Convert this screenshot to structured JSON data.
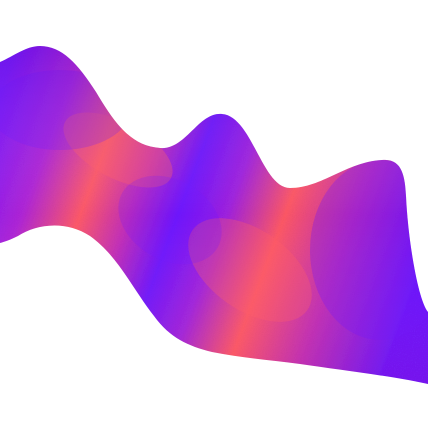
{
  "artwork": {
    "subject": "abstract-wave-ribbon",
    "background_color": "#ffffff",
    "colors": {
      "violet": "#6b12ff",
      "purple": "#9a1cf0",
      "magenta": "#e23aa8",
      "coral": "#ff5a6a",
      "pink": "#f0437f"
    }
  }
}
